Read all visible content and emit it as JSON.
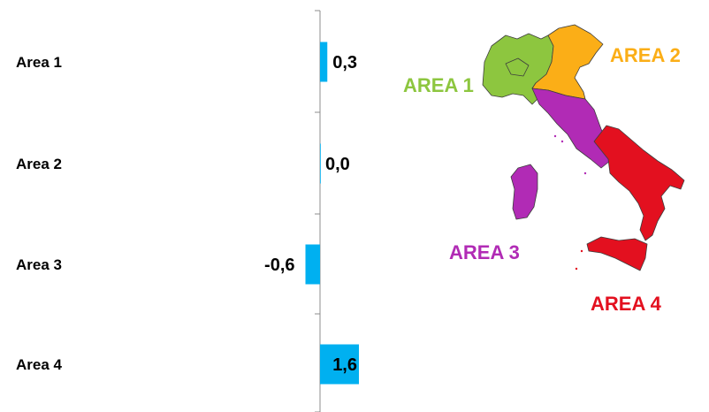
{
  "chart_data": {
    "type": "bar",
    "orientation": "horizontal",
    "categories": [
      "Area 1",
      "Area 2",
      "Area 3",
      "Area 4"
    ],
    "values": [
      0.3,
      0.0,
      -0.6,
      1.6
    ],
    "value_labels": [
      "0,3",
      "0,0",
      "-0,6",
      "1,6"
    ],
    "xlim": [
      -0.6,
      1.6
    ],
    "grid": false,
    "bar_color": "#00B0F0"
  },
  "map": {
    "labels": [
      {
        "key": "area1",
        "text": "AREA 1",
        "color": "#8DC63F"
      },
      {
        "key": "area2",
        "text": "AREA 2",
        "color": "#FBAE17"
      },
      {
        "key": "area3",
        "text": "AREA 3",
        "color": "#B12BB5"
      },
      {
        "key": "area4",
        "text": "AREA 4",
        "color": "#E3101F"
      }
    ]
  }
}
